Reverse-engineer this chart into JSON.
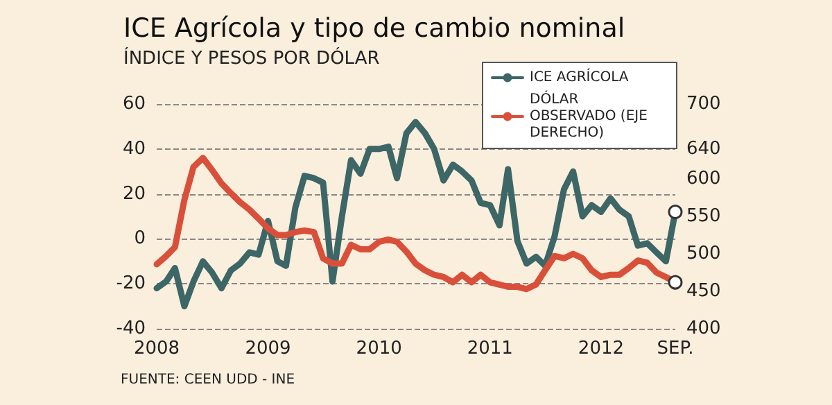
{
  "chart_data": {
    "type": "line",
    "title": "ICE Agrícola y tipo de cambio nominal",
    "subtitle": "ÍNDICE Y PESOS POR DÓLAR",
    "annotations": [
      "FUENTE: CEEN UDD - INE"
    ],
    "x": [
      "2008-01",
      "2008-02",
      "2008-03",
      "2008-04",
      "2008-05",
      "2008-06",
      "2008-07",
      "2008-08",
      "2008-09",
      "2008-10",
      "2008-11",
      "2008-12",
      "2009-01",
      "2009-02",
      "2009-03",
      "2009-04",
      "2009-05",
      "2009-06",
      "2009-07",
      "2009-08",
      "2009-09",
      "2009-10",
      "2009-11",
      "2009-12",
      "2010-01",
      "2010-02",
      "2010-03",
      "2010-04",
      "2010-05",
      "2010-06",
      "2010-07",
      "2010-08",
      "2010-09",
      "2010-10",
      "2010-11",
      "2010-12",
      "2011-01",
      "2011-02",
      "2011-03",
      "2011-04",
      "2011-05",
      "2011-06",
      "2011-07",
      "2011-08",
      "2011-09",
      "2011-10",
      "2011-11",
      "2011-12",
      "2012-01",
      "2012-02",
      "2012-03",
      "2012-04",
      "2012-05",
      "2012-06",
      "2012-07",
      "2012-08",
      "2012-09"
    ],
    "series": [
      {
        "name": "ICE AGRÍCOLA",
        "color": "#3d6667",
        "values": [
          -22,
          -19,
          -13,
          -30,
          -19,
          -10,
          -15,
          -22,
          -14,
          -11,
          -6,
          -7,
          8,
          -10,
          -12,
          14,
          28,
          27,
          25,
          -19,
          10,
          35,
          29,
          40,
          40,
          41,
          27,
          47,
          52,
          47,
          40,
          26,
          33,
          30,
          26,
          16,
          15,
          6,
          31,
          -1,
          -11,
          -8,
          -12,
          1,
          22,
          30,
          10,
          15,
          12,
          18,
          13,
          10,
          -3,
          -2,
          -6,
          -10,
          12
        ]
      },
      {
        "name": "DÓLAR OBSERVADO (EJE DERECHO)",
        "color": "#d9503a",
        "axis": "y2",
        "values": [
          486,
          497,
          509,
          572,
          616,
          628,
          612,
          594,
          581,
          569,
          559,
          547,
          534,
          525,
          525,
          529,
          531,
          529,
          494,
          487,
          487,
          512,
          506,
          506,
          516,
          519,
          516,
          503,
          487,
          478,
          472,
          469,
          462,
          472,
          462,
          472,
          462,
          459,
          456,
          456,
          453,
          459,
          478,
          497,
          494,
          500,
          494,
          478,
          469,
          472,
          472,
          481,
          491,
          488,
          475,
          469,
          462
        ]
      }
    ],
    "xlim": [
      "2008-01",
      "2012-09"
    ],
    "xticks": [
      {
        "value": "2008-01",
        "label": "2008"
      },
      {
        "value": "2009-01",
        "label": "2009"
      },
      {
        "value": "2010-01",
        "label": "2010"
      },
      {
        "value": "2011-01",
        "label": "2011"
      },
      {
        "value": "2012-01",
        "label": "2012"
      },
      {
        "value": "2012-09",
        "label": "SEP."
      }
    ],
    "ylim": [
      -40,
      60
    ],
    "yticks": [
      -40,
      -20,
      0,
      20,
      40,
      60
    ],
    "y2lim": [
      400,
      700
    ],
    "y2ticks": [
      400,
      450,
      500,
      550,
      600,
      640,
      700
    ],
    "grid": "y",
    "legend": "top right",
    "marker": "none",
    "line_style": "solid"
  }
}
